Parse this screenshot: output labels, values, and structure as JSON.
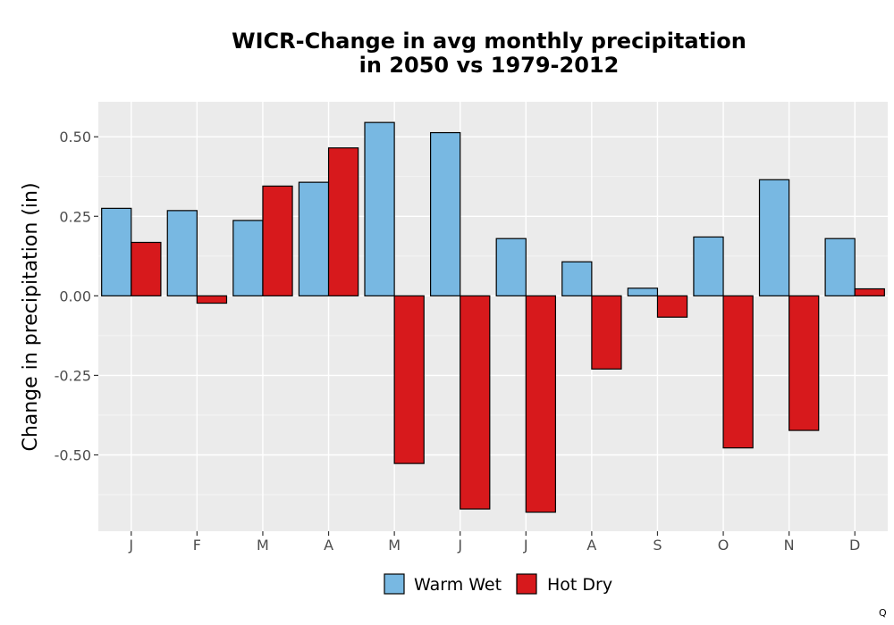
{
  "chart_data": {
    "type": "bar",
    "title_line1": "WICR-Change in avg monthly precipitation",
    "title_line2": "in 2050 vs 1979-2012",
    "xlabel": "",
    "ylabel": "Change in precipitation (in)",
    "categories": [
      "J",
      "F",
      "M",
      "A",
      "M",
      "J",
      "J",
      "A",
      "S",
      "O",
      "N",
      "D"
    ],
    "series": [
      {
        "name": "Warm Wet",
        "color": "#78b8e2",
        "values": [
          0.275,
          0.268,
          0.237,
          0.357,
          0.545,
          0.513,
          0.18,
          0.107,
          0.024,
          0.185,
          0.365,
          0.18
        ]
      },
      {
        "name": "Hot Dry",
        "color": "#d7191c",
        "values": [
          0.168,
          -0.023,
          0.345,
          0.465,
          -0.527,
          -0.67,
          -0.68,
          -0.23,
          -0.067,
          -0.478,
          -0.423,
          0.022
        ]
      }
    ],
    "yticks": [
      -0.5,
      -0.25,
      0,
      0.25,
      0.5
    ],
    "ytick_labels": [
      "-0.50",
      "-0.25",
      "0.00",
      "0.25",
      "0.50"
    ],
    "ylim": [
      -0.74,
      0.61
    ],
    "grid": true,
    "legend_position": "bottom",
    "corner_mark": "Q"
  }
}
